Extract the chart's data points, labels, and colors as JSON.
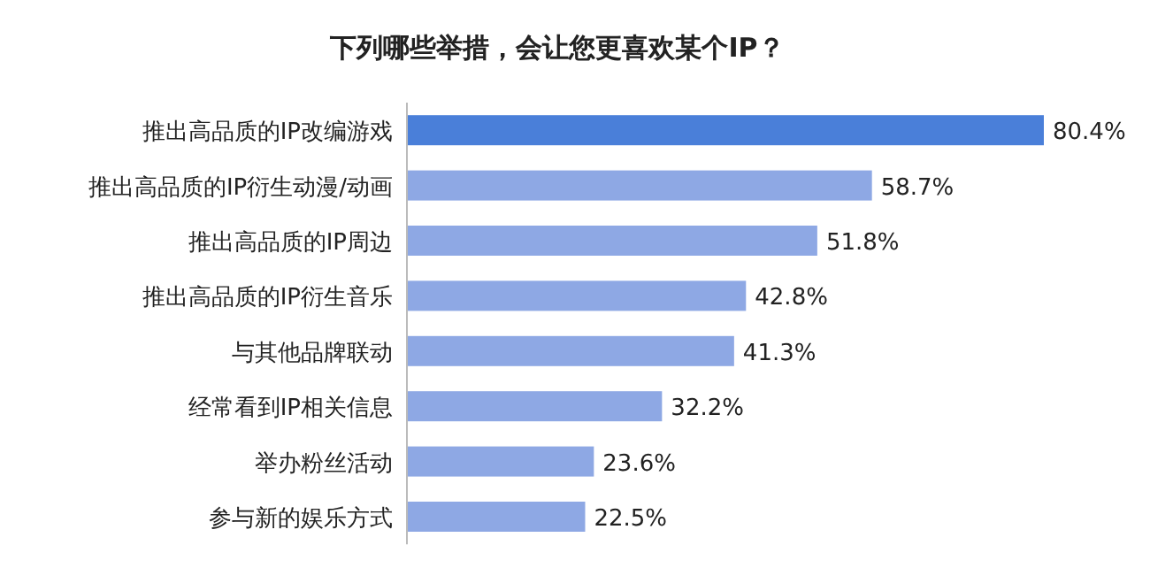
{
  "chart_data": {
    "type": "bar",
    "orientation": "horizontal",
    "title": "下列哪些举措，会让您更喜欢某个IP？",
    "categories": [
      "推出高品质的IP改编游戏",
      "推出高品质的IP衍生动漫/动画",
      "推出高品质的IP周边",
      "推出高品质的IP衍生音乐",
      "与其他品牌联动",
      "经常看到IP相关信息",
      "举办粉丝活动",
      "参与新的娱乐方式"
    ],
    "values": [
      80.4,
      58.7,
      51.8,
      42.8,
      41.3,
      32.2,
      23.6,
      22.5
    ],
    "value_labels": [
      "80.4%",
      "58.7%",
      "51.8%",
      "42.8%",
      "41.3%",
      "32.2%",
      "23.6%",
      "22.5%"
    ],
    "colors": [
      "#4a7fd9",
      "#8ea8e4",
      "#8ea8e4",
      "#8ea8e4",
      "#8ea8e4",
      "#8ea8e4",
      "#8ea8e4",
      "#8ea8e4"
    ]
  }
}
